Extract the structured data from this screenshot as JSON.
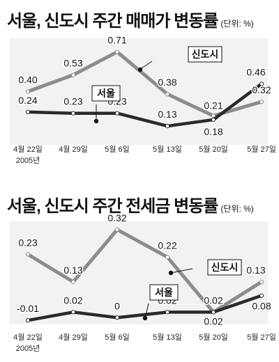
{
  "chart_data": [
    {
      "type": "line",
      "title": "서울, 신도시 주간 매매가 변동률",
      "unit_label": "(단위: %)",
      "categories": [
        "4월 22일",
        "4월 29일",
        "5월 6일",
        "5월 13일",
        "5월 20일",
        "5월 27일"
      ],
      "category_sublabel": "2005년",
      "ylim": [
        0,
        0.8
      ],
      "series": [
        {
          "name": "신도시",
          "values": [
            0.4,
            0.53,
            0.71,
            0.38,
            0.21,
            0.32
          ],
          "labels": [
            "0.40",
            "0.53",
            "0.71",
            "0.38",
            "0.21",
            "0.32"
          ],
          "color": "#8c8c8c"
        },
        {
          "name": "서울",
          "values": [
            0.24,
            0.23,
            0.23,
            0.13,
            0.18,
            0.46
          ],
          "labels": [
            "0.24",
            "0.23",
            "0.23",
            "0.13",
            "0.18",
            "0.46"
          ],
          "color": "#2a2a2a"
        }
      ]
    },
    {
      "type": "line",
      "title": "서울, 신도시 주간 전세금 변동률",
      "unit_label": "(단위: %)",
      "categories": [
        "4월 22일",
        "4월 29일",
        "5월 6일",
        "5월 13일",
        "5월 20일",
        "5월 27일"
      ],
      "category_sublabel": "2005년",
      "ylim": [
        -0.05,
        0.35
      ],
      "series": [
        {
          "name": "신도시",
          "values": [
            0.23,
            0.13,
            0.32,
            0.22,
            0.02,
            0.13
          ],
          "labels": [
            "0.23",
            "0.13",
            "0.32",
            "0.22",
            "0.02",
            "0.13"
          ],
          "color": "#8c8c8c"
        },
        {
          "name": "서울",
          "values": [
            -0.01,
            0.02,
            0,
            0.02,
            0.02,
            0.08
          ],
          "labels": [
            "-0.01",
            "0.02",
            "0",
            "0.02",
            "0.02",
            "0.08"
          ],
          "color": "#2a2a2a"
        }
      ]
    }
  ]
}
